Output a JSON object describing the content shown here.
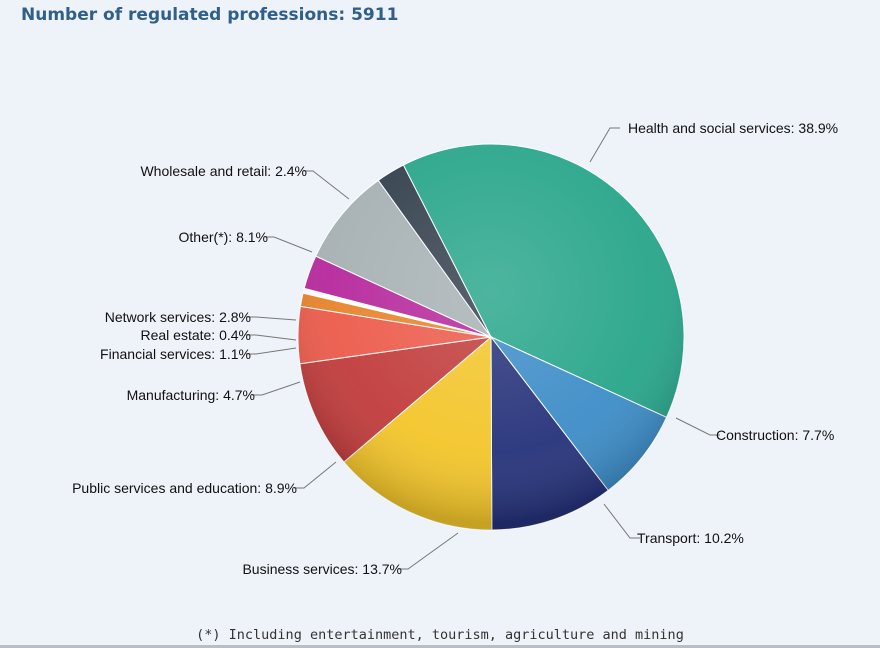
{
  "title": "Number of regulated professions: 5911",
  "footnote": "(*) Including entertainment, tourism, agriculture and mining",
  "chart_data": {
    "type": "pie",
    "title": "Number of regulated professions: 5911",
    "total": 5911,
    "unit": "%",
    "slices": [
      {
        "label": "Health and social services",
        "value": 38.9,
        "color": "#27a58a"
      },
      {
        "label": "Construction",
        "value": 7.7,
        "color": "#3c8cc7"
      },
      {
        "label": "Transport",
        "value": 10.2,
        "color": "#25327a"
      },
      {
        "label": "Business services",
        "value": 13.7,
        "color": "#f3c52a"
      },
      {
        "label": "Public services and education",
        "value": 8.9,
        "color": "#c13b3b"
      },
      {
        "label": "Manufacturing",
        "value": 4.7,
        "color": "#ec5a4a"
      },
      {
        "label": "Financial services",
        "value": 1.1,
        "color": "#e7832a"
      },
      {
        "label": "Real estate",
        "value": 0.4,
        "color": "#ffffff"
      },
      {
        "label": "Network services",
        "value": 2.8,
        "color": "#b6279c"
      },
      {
        "label": "Other(*)",
        "value": 8.1,
        "color": "#a6b0b3"
      },
      {
        "label": "Wholesale and retail",
        "value": 2.4,
        "color": "#333f4d"
      }
    ]
  }
}
